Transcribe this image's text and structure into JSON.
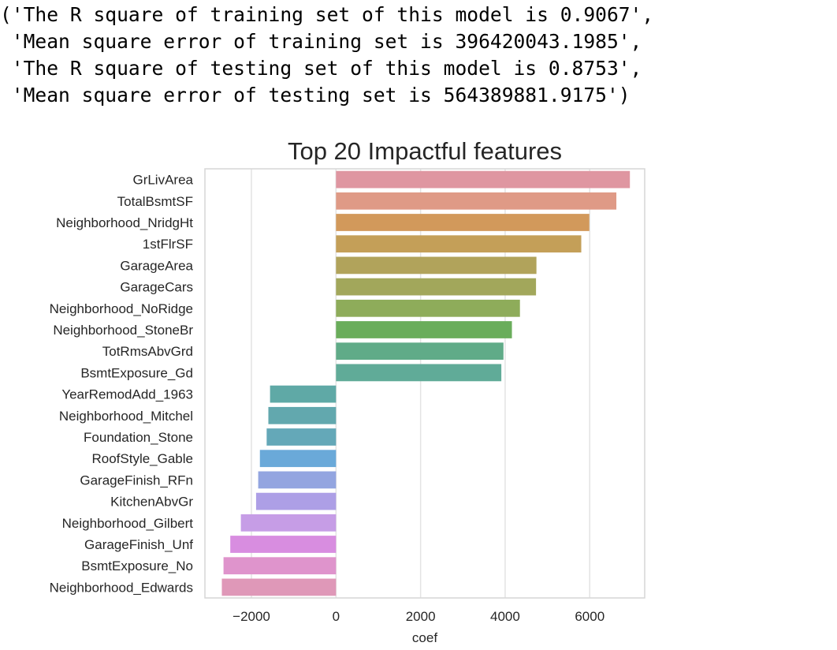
{
  "output": {
    "lines": [
      "('The R square of training set of this model is 0.9067',",
      " 'Mean square error of training set is 396420043.1985',",
      " 'The R square of testing set of this model is 0.8753',",
      " 'Mean square error of testing set is 564389881.9175')"
    ]
  },
  "chart_data": {
    "type": "bar",
    "orientation": "horizontal",
    "title": "Top 20 Impactful features",
    "xlabel": "coef",
    "ylabel": "",
    "xlim": [
      -3100,
      7300
    ],
    "xticks": [
      -2000,
      0,
      2000,
      4000,
      6000
    ],
    "xtick_labels": [
      "−2000",
      "0",
      "2000",
      "4000",
      "6000"
    ],
    "grid": "vertical",
    "categories": [
      "GrLivArea",
      "TotalBsmtSF",
      "Neighborhood_NridgHt",
      "1stFlrSF",
      "GarageArea",
      "GarageCars",
      "Neighborhood_NoRidge",
      "Neighborhood_StoneBr",
      "TotRmsAbvGrd",
      "BsmtExposure_Gd",
      "YearRemodAdd_1963",
      "Neighborhood_Mitchel",
      "Foundation_Stone",
      "RoofStyle_Gable",
      "GarageFinish_RFn",
      "KitchenAbvGr",
      "Neighborhood_Gilbert",
      "GarageFinish_Unf",
      "BsmtExposure_No",
      "Neighborhood_Edwards"
    ],
    "values": [
      6950,
      6630,
      5990,
      5800,
      4740,
      4730,
      4350,
      4160,
      3960,
      3910,
      -1560,
      -1600,
      -1640,
      -1800,
      -1840,
      -1890,
      -2250,
      -2500,
      -2660,
      -2700
    ],
    "colors": [
      "#df96a1",
      "#df9a86",
      "#d2995b",
      "#c49f58",
      "#b1a35b",
      "#a2a75b",
      "#8eac5a",
      "#6aad5b",
      "#60ab88",
      "#60ab98",
      "#5fa9a6",
      "#62a8ae",
      "#64a8b8",
      "#6aa9d9",
      "#93a5e0",
      "#ad9fe6",
      "#c69de6",
      "#d88de0",
      "#df94cc",
      "#df98b8"
    ]
  }
}
